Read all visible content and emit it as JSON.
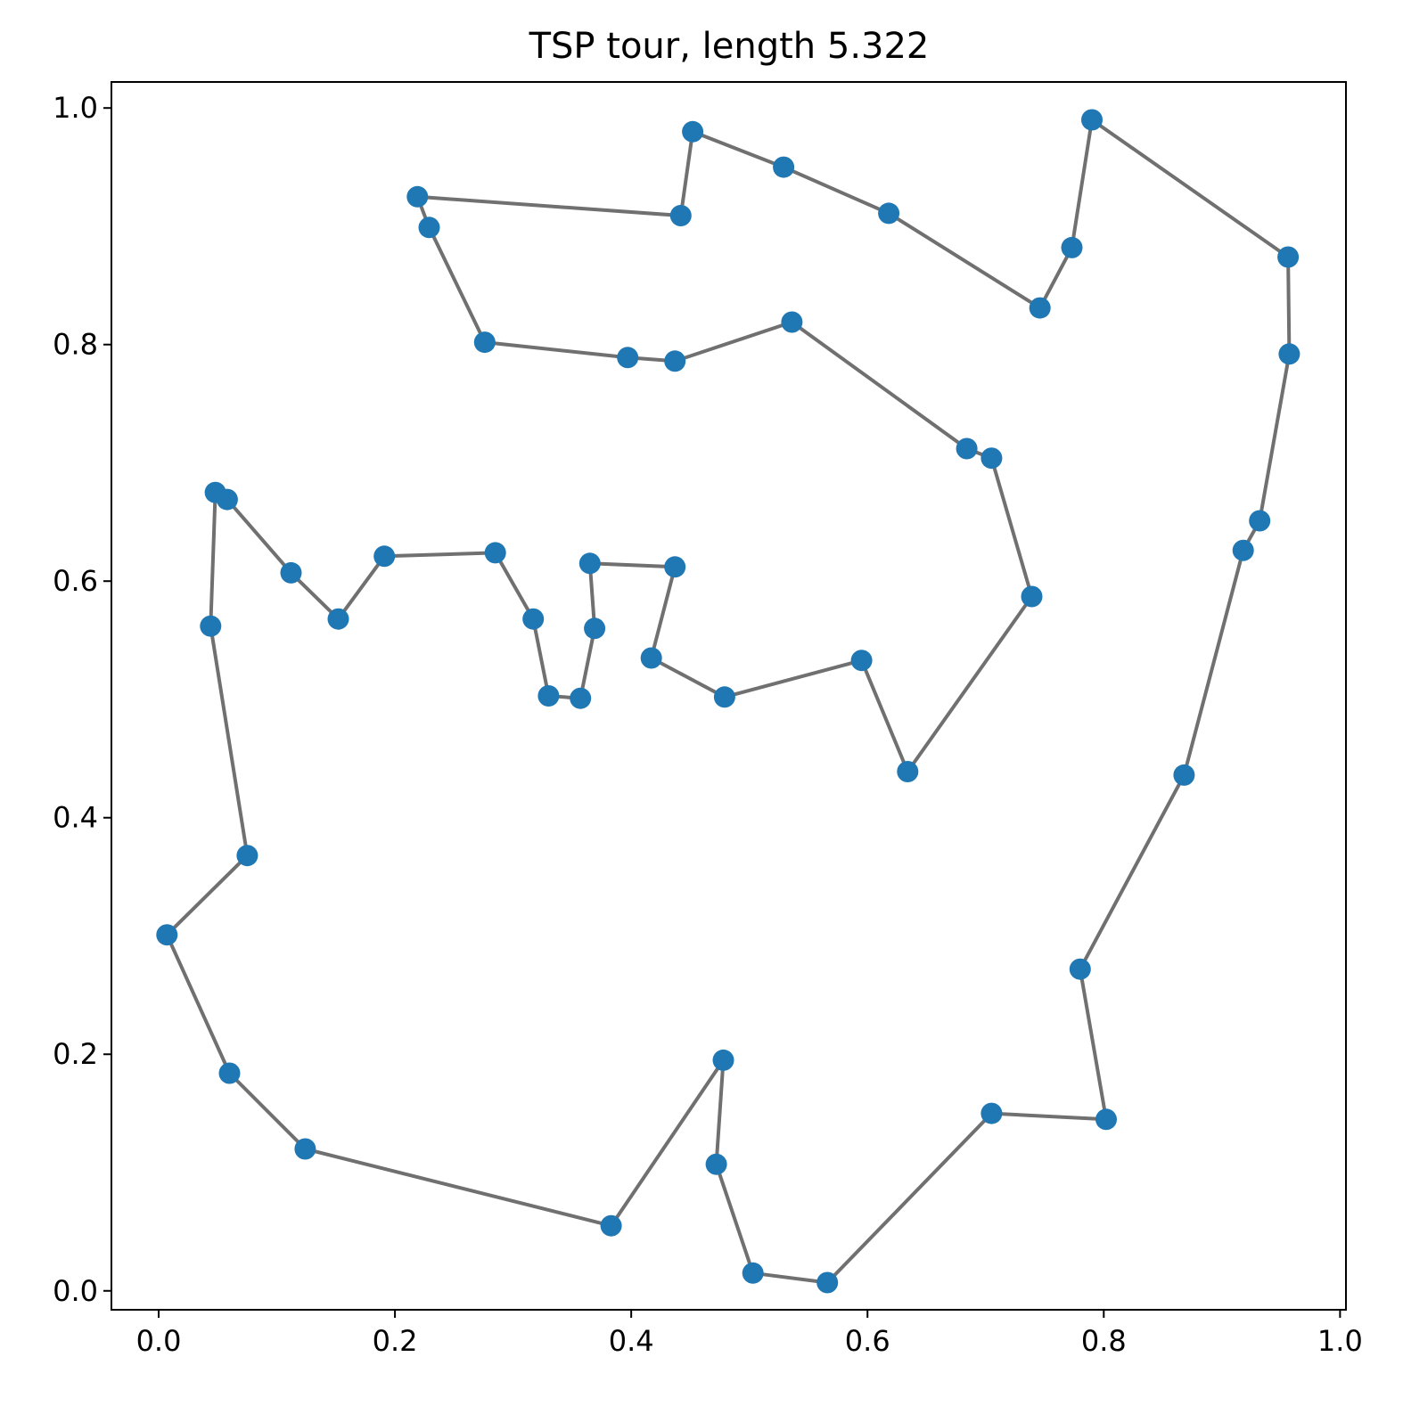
{
  "chart_data": {
    "type": "line",
    "title": "TSP tour, length 5.322",
    "xlabel": "",
    "ylabel": "",
    "xlim": [
      -0.04,
      1.005
    ],
    "ylim": [
      -0.016,
      1.022
    ],
    "xticks": [
      0.0,
      0.2,
      0.4,
      0.6,
      0.8,
      1.0
    ],
    "xtick_labels": [
      "0.0",
      "0.2",
      "0.4",
      "0.6",
      "0.8",
      "1.0"
    ],
    "yticks": [
      0.0,
      0.2,
      0.4,
      0.6,
      0.8,
      1.0
    ],
    "ytick_labels": [
      "0.0",
      "0.2",
      "0.4",
      "0.6",
      "0.8",
      "1.0"
    ],
    "grid": false,
    "marker_color": "#1f77b4",
    "line_color": "#707070",
    "series": [
      {
        "closed": true,
        "points": [
          [
            0.442,
            0.909
          ],
          [
            0.452,
            0.98
          ],
          [
            0.529,
            0.95
          ],
          [
            0.618,
            0.911
          ],
          [
            0.746,
            0.831
          ],
          [
            0.773,
            0.882
          ],
          [
            0.79,
            0.99
          ],
          [
            0.956,
            0.874
          ],
          [
            0.957,
            0.792
          ],
          [
            0.932,
            0.651
          ],
          [
            0.918,
            0.626
          ],
          [
            0.868,
            0.436
          ],
          [
            0.78,
            0.272
          ],
          [
            0.802,
            0.145
          ],
          [
            0.705,
            0.15
          ],
          [
            0.566,
            0.007
          ],
          [
            0.503,
            0.015
          ],
          [
            0.472,
            0.107
          ],
          [
            0.478,
            0.195
          ],
          [
            0.383,
            0.055
          ],
          [
            0.124,
            0.12
          ],
          [
            0.06,
            0.184
          ],
          [
            0.007,
            0.301
          ],
          [
            0.075,
            0.368
          ],
          [
            0.044,
            0.562
          ],
          [
            0.048,
            0.675
          ],
          [
            0.058,
            0.669
          ],
          [
            0.112,
            0.607
          ],
          [
            0.152,
            0.568
          ],
          [
            0.191,
            0.621
          ],
          [
            0.285,
            0.624
          ],
          [
            0.317,
            0.568
          ],
          [
            0.33,
            0.503
          ],
          [
            0.357,
            0.501
          ],
          [
            0.369,
            0.56
          ],
          [
            0.365,
            0.615
          ],
          [
            0.437,
            0.612
          ],
          [
            0.417,
            0.535
          ],
          [
            0.479,
            0.502
          ],
          [
            0.595,
            0.533
          ],
          [
            0.634,
            0.439
          ],
          [
            0.739,
            0.587
          ],
          [
            0.705,
            0.704
          ],
          [
            0.684,
            0.712
          ],
          [
            0.536,
            0.819
          ],
          [
            0.437,
            0.786
          ],
          [
            0.397,
            0.789
          ],
          [
            0.276,
            0.802
          ],
          [
            0.229,
            0.899
          ],
          [
            0.219,
            0.925
          ]
        ]
      }
    ]
  }
}
